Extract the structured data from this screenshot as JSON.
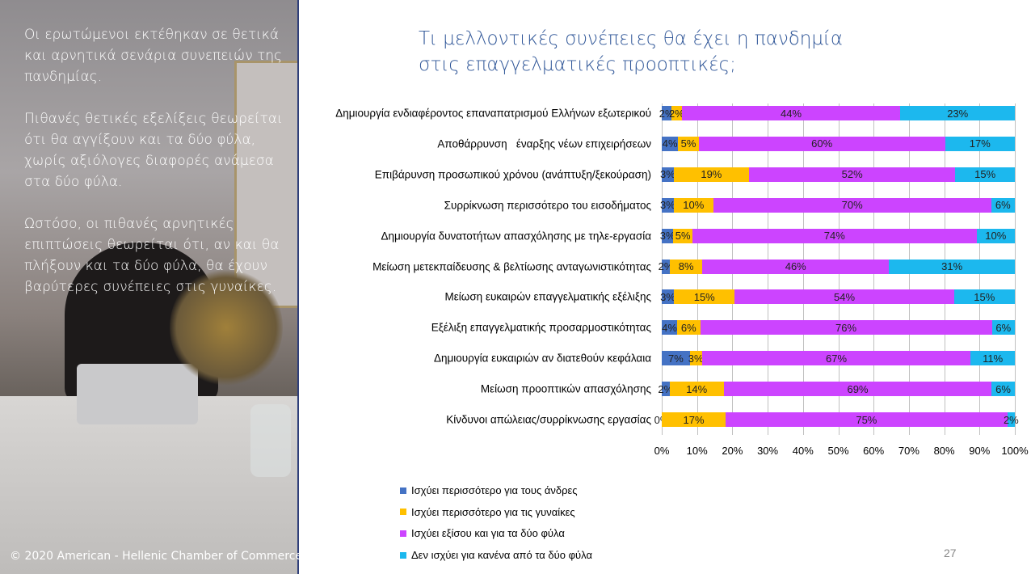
{
  "left_panel": {
    "paragraphs": [
      "Οι ερωτώμενοι εκτέθηκαν σε θετικά και αρνητικά σενάρια συνεπειών της πανδημίας.",
      "Πιθανές θετικές εξελίξεις θεωρείται ότι θα αγγίξουν και τα δύο φύλα,  χωρίς αξιόλογες διαφορές ανάμεσα στα δύο φύλα.",
      "Ωστόσο, οι πιθανές αρνητικές επιπτώσεις θεωρείται ότι, αν και θα πλήξουν και τα δύο φύλα, θα έχουν βαρύτερες συνέπειες στις γυναίκες."
    ],
    "copyright": "© 2020 American - Hellenic Chamber of Commerce"
  },
  "title_lines": [
    "Τι μελλοντικές συνέπειες θα έχει η πανδημία",
    "στις επαγγελματικές προοπτικές;"
  ],
  "page_number": "27",
  "chart_data": {
    "type": "bar",
    "orientation": "horizontal",
    "stacked": "100%",
    "categories": [
      "Δημιουργία ενδιαφέροντος επαναπατρισμού Ελλήνων εξωτερικού",
      "Αποθάρρυνση   έναρξης νέων επιχειρήσεων",
      "Επιβάρυνση προσωπικού χρόνου (ανάπτυξη/ξεκούραση)",
      "Συρρίκνωση περισσότερο του εισοδήματος",
      "Δημιουργία δυνατοτήτων απασχόλησης με τηλε-εργασία",
      "Μείωση μετεκπαίδευσης & βελτίωσης ανταγωνιστικότητας",
      "Μείωση ευκαιρών επαγγελματικής εξέλιξης",
      "Εξέλιξη επαγγελματικής προσαρμοστικότητας",
      "Δημιουργία ευκαιριών αν διατεθούν κεφάλαια",
      "Μείωση προοπτικών απασχόλησης",
      "Κίνδυνοι απώλειας/συρρίκνωσης εργασίας"
    ],
    "series": [
      {
        "name": "Ισχύει περισσότερο για τους άνδρες",
        "color": "#4472c4",
        "values": [
          2,
          4,
          3,
          3,
          3,
          2,
          3,
          4,
          7,
          2,
          0
        ]
      },
      {
        "name": "Ισχύει περισσότερο για τις γυναίκες",
        "color": "#ffc000",
        "values": [
          2,
          5,
          19,
          10,
          5,
          8,
          15,
          6,
          3,
          14,
          17
        ]
      },
      {
        "name": "Ισχύει εξίσου και για τα δύο φύλα",
        "color": "#cc44ff",
        "values": [
          44,
          60,
          52,
          70,
          74,
          46,
          54,
          76,
          67,
          69,
          75
        ]
      },
      {
        "name": "Δεν ισχύει για κανένα από τα δύο φύλα",
        "color": "#1cb8ee",
        "values": [
          23,
          17,
          15,
          6,
          10,
          31,
          15,
          6,
          11,
          6,
          2
        ]
      }
    ],
    "xticks": [
      "0%",
      "10%",
      "20%",
      "30%",
      "40%",
      "50%",
      "60%",
      "70%",
      "80%",
      "90%",
      "100%"
    ],
    "xlim": [
      0,
      100
    ],
    "grid": true,
    "legend_position": "bottom-left"
  }
}
